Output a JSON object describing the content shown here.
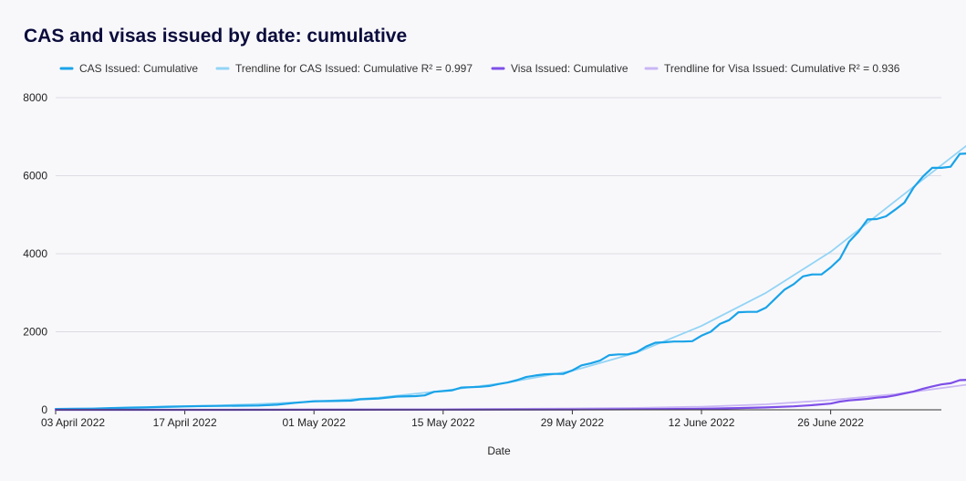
{
  "chart_data": {
    "type": "line",
    "title": "CAS and visas issued by date: cumulative",
    "xlabel": "Date",
    "ylabel": "",
    "x_start": "2022-04-03",
    "x_end": "2022-07-08",
    "ylim": [
      0,
      8000
    ],
    "y_ticks": [
      0,
      2000,
      4000,
      6000,
      8000
    ],
    "x_ticks": [
      {
        "date": "2022-04-03",
        "label": "03 April 2022"
      },
      {
        "date": "2022-04-17",
        "label": "17 April 2022"
      },
      {
        "date": "2022-05-01",
        "label": "01 May 2022"
      },
      {
        "date": "2022-05-15",
        "label": "15 May 2022"
      },
      {
        "date": "2022-05-29",
        "label": "29 May 2022"
      },
      {
        "date": "2022-06-12",
        "label": "12 June 2022"
      },
      {
        "date": "2022-06-26",
        "label": "26 June 2022"
      }
    ],
    "grid": true,
    "legend_position": "top",
    "series": [
      {
        "name": "CAS Issued: Cumulative",
        "color": "#1aa3e8",
        "style": "line",
        "points": [
          [
            "2022-04-03",
            20
          ],
          [
            "2022-04-05",
            25
          ],
          [
            "2022-04-07",
            30
          ],
          [
            "2022-04-09",
            45
          ],
          [
            "2022-04-11",
            55
          ],
          [
            "2022-04-13",
            65
          ],
          [
            "2022-04-15",
            80
          ],
          [
            "2022-04-17",
            90
          ],
          [
            "2022-04-19",
            95
          ],
          [
            "2022-04-21",
            100
          ],
          [
            "2022-04-23",
            105
          ],
          [
            "2022-04-25",
            110
          ],
          [
            "2022-04-27",
            130
          ],
          [
            "2022-04-29",
            180
          ],
          [
            "2022-05-01",
            220
          ],
          [
            "2022-05-03",
            225
          ],
          [
            "2022-05-05",
            235
          ],
          [
            "2022-05-06",
            270
          ],
          [
            "2022-05-08",
            290
          ],
          [
            "2022-05-10",
            340
          ],
          [
            "2022-05-12",
            350
          ],
          [
            "2022-05-13",
            370
          ],
          [
            "2022-05-14",
            460
          ],
          [
            "2022-05-16",
            500
          ],
          [
            "2022-05-17",
            570
          ],
          [
            "2022-05-19",
            590
          ],
          [
            "2022-05-20",
            610
          ],
          [
            "2022-05-21",
            660
          ],
          [
            "2022-05-22",
            700
          ],
          [
            "2022-05-23",
            760
          ],
          [
            "2022-05-24",
            840
          ],
          [
            "2022-05-25",
            880
          ],
          [
            "2022-05-26",
            910
          ],
          [
            "2022-05-27",
            920
          ],
          [
            "2022-05-28",
            920
          ],
          [
            "2022-05-29",
            1010
          ],
          [
            "2022-05-30",
            1140
          ],
          [
            "2022-05-31",
            1190
          ],
          [
            "2022-06-01",
            1260
          ],
          [
            "2022-06-02",
            1400
          ],
          [
            "2022-06-03",
            1420
          ],
          [
            "2022-06-04",
            1420
          ],
          [
            "2022-06-05",
            1480
          ],
          [
            "2022-06-06",
            1620
          ],
          [
            "2022-06-07",
            1720
          ],
          [
            "2022-06-08",
            1730
          ],
          [
            "2022-06-09",
            1750
          ],
          [
            "2022-06-10",
            1750
          ],
          [
            "2022-06-11",
            1760
          ],
          [
            "2022-06-12",
            1900
          ],
          [
            "2022-06-13",
            2000
          ],
          [
            "2022-06-14",
            2200
          ],
          [
            "2022-06-15",
            2300
          ],
          [
            "2022-06-16",
            2500
          ],
          [
            "2022-06-17",
            2510
          ],
          [
            "2022-06-18",
            2510
          ],
          [
            "2022-06-19",
            2620
          ],
          [
            "2022-06-20",
            2850
          ],
          [
            "2022-06-21",
            3080
          ],
          [
            "2022-06-22",
            3220
          ],
          [
            "2022-06-23",
            3420
          ],
          [
            "2022-06-24",
            3470
          ],
          [
            "2022-06-25",
            3470
          ],
          [
            "2022-06-26",
            3650
          ],
          [
            "2022-06-27",
            3870
          ],
          [
            "2022-06-28",
            4310
          ],
          [
            "2022-06-29",
            4560
          ],
          [
            "2022-06-30",
            4880
          ],
          [
            "2022-07-01",
            4890
          ],
          [
            "2022-07-02",
            4960
          ],
          [
            "2022-07-03",
            5130
          ],
          [
            "2022-07-04",
            5310
          ],
          [
            "2022-07-05",
            5700
          ],
          [
            "2022-07-06",
            5980
          ],
          [
            "2022-07-07",
            6200
          ],
          [
            "2022-07-08",
            6200
          ],
          [
            "2022-07-09",
            6230
          ],
          [
            "2022-07-10",
            6560
          ],
          [
            "2022-07-11",
            6570
          ]
        ]
      },
      {
        "name": "Trendline for CAS Issued: Cumulative R² = 0.997",
        "color": "#93d4f5",
        "style": "trend",
        "points": [
          [
            "2022-04-03",
            0
          ],
          [
            "2022-04-10",
            30
          ],
          [
            "2022-04-17",
            80
          ],
          [
            "2022-04-24",
            140
          ],
          [
            "2022-05-01",
            210
          ],
          [
            "2022-05-08",
            310
          ],
          [
            "2022-05-15",
            490
          ],
          [
            "2022-05-22",
            700
          ],
          [
            "2022-05-29",
            1000
          ],
          [
            "2022-06-05",
            1470
          ],
          [
            "2022-06-12",
            2150
          ],
          [
            "2022-06-19",
            3000
          ],
          [
            "2022-06-26",
            4050
          ],
          [
            "2022-07-03",
            5350
          ],
          [
            "2022-07-11",
            6820
          ]
        ]
      },
      {
        "name": "Visa Issued: Cumulative",
        "color": "#7e4fe8",
        "style": "line",
        "points": [
          [
            "2022-04-03",
            0
          ],
          [
            "2022-04-17",
            0
          ],
          [
            "2022-05-01",
            2
          ],
          [
            "2022-05-15",
            5
          ],
          [
            "2022-05-29",
            10
          ],
          [
            "2022-06-05",
            15
          ],
          [
            "2022-06-12",
            25
          ],
          [
            "2022-06-16",
            45
          ],
          [
            "2022-06-19",
            60
          ],
          [
            "2022-06-22",
            90
          ],
          [
            "2022-06-24",
            120
          ],
          [
            "2022-06-26",
            160
          ],
          [
            "2022-06-27",
            210
          ],
          [
            "2022-06-28",
            240
          ],
          [
            "2022-06-29",
            260
          ],
          [
            "2022-06-30",
            280
          ],
          [
            "2022-07-01",
            310
          ],
          [
            "2022-07-02",
            330
          ],
          [
            "2022-07-03",
            370
          ],
          [
            "2022-07-04",
            420
          ],
          [
            "2022-07-05",
            470
          ],
          [
            "2022-07-06",
            540
          ],
          [
            "2022-07-07",
            600
          ],
          [
            "2022-07-08",
            650
          ],
          [
            "2022-07-09",
            680
          ],
          [
            "2022-07-10",
            760
          ],
          [
            "2022-07-11",
            770
          ]
        ]
      },
      {
        "name": "Trendline for Visa Issued: Cumulative R² = 0.936",
        "color": "#c9b6f4",
        "style": "trend",
        "points": [
          [
            "2022-04-03",
            0
          ],
          [
            "2022-05-01",
            5
          ],
          [
            "2022-05-15",
            15
          ],
          [
            "2022-05-29",
            35
          ],
          [
            "2022-06-05",
            50
          ],
          [
            "2022-06-12",
            80
          ],
          [
            "2022-06-19",
            140
          ],
          [
            "2022-06-26",
            250
          ],
          [
            "2022-07-03",
            400
          ],
          [
            "2022-07-11",
            650
          ]
        ]
      }
    ]
  }
}
